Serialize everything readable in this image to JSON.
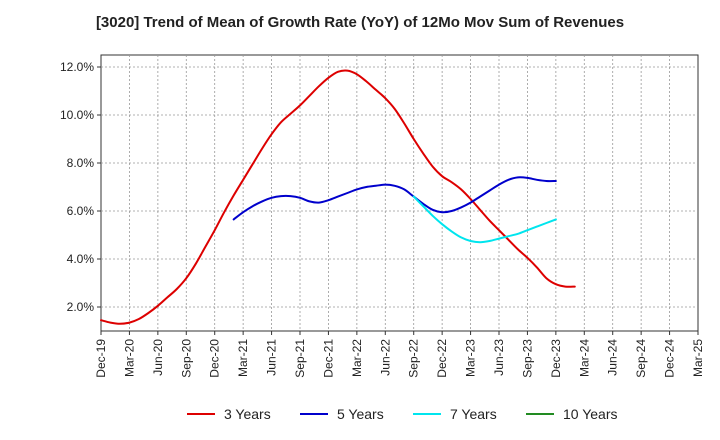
{
  "chart_data": {
    "type": "line",
    "title": "[3020]  Trend of Mean of Growth Rate (YoY) of 12Mo Mov Sum of Revenues",
    "xlabel": "",
    "ylabel": "",
    "categories": [
      "Dec-19",
      "Mar-20",
      "Jun-20",
      "Sep-20",
      "Dec-20",
      "Mar-21",
      "Jun-21",
      "Sep-21",
      "Dec-21",
      "Mar-22",
      "Jun-22",
      "Sep-22",
      "Dec-22",
      "Mar-23",
      "Jun-23",
      "Sep-23",
      "Dec-23",
      "Mar-24",
      "Jun-24",
      "Sep-24",
      "Dec-24",
      "Mar-25"
    ],
    "x_index_range": [
      0,
      63
    ],
    "ylim": [
      1.0,
      12.5
    ],
    "yticks": [
      2.0,
      4.0,
      6.0,
      8.0,
      10.0,
      12.0
    ],
    "ytick_labels": [
      "2.0%",
      "4.0%",
      "6.0%",
      "8.0%",
      "10.0%",
      "12.0%"
    ],
    "grid": true,
    "legend_position": "bottom",
    "series": [
      {
        "name": "3 Years",
        "color": "#dd0000",
        "x": [
          0,
          1,
          2,
          3,
          4,
          5,
          6,
          7,
          8,
          9,
          10,
          11,
          12,
          13,
          14,
          15,
          16,
          17,
          18,
          19,
          20,
          21,
          22,
          23,
          24,
          25,
          26,
          27,
          28,
          29,
          30,
          31,
          32,
          33,
          34,
          35,
          36,
          37,
          38,
          39,
          40,
          41,
          42,
          43,
          44,
          45,
          46,
          47,
          48,
          49,
          50,
          51,
          52,
          53,
          54,
          55,
          56,
          57,
          58,
          59,
          60
        ],
        "values": [
          1.45,
          1.35,
          1.3,
          1.35,
          1.5,
          1.75,
          2.05,
          2.4,
          2.75,
          3.2,
          3.8,
          4.5,
          5.2,
          5.95,
          6.65,
          7.3,
          7.95,
          8.6,
          9.2,
          9.7,
          10.05,
          10.4,
          10.8,
          11.2,
          11.55,
          11.8,
          11.85,
          11.7,
          11.4,
          11.05,
          10.7,
          10.25,
          9.65,
          9.0,
          8.4,
          7.85,
          7.45,
          7.2,
          6.9,
          6.5,
          6.05,
          5.6,
          5.2,
          4.8,
          4.4,
          4.05,
          3.65,
          3.2,
          2.95,
          2.85,
          2.85,
          null,
          null,
          null,
          null,
          null,
          null,
          null,
          null,
          null,
          null
        ]
      },
      {
        "name": "5 Years",
        "color": "#0000cc",
        "x": [
          14,
          15,
          16,
          17,
          18,
          19,
          20,
          21,
          22,
          23,
          24,
          25,
          26,
          27,
          28,
          29,
          30,
          31,
          32,
          33,
          34,
          35,
          36,
          37,
          38,
          39,
          40,
          41,
          42,
          43,
          44,
          45,
          46,
          47,
          48,
          49,
          50
        ],
        "values": [
          5.65,
          5.95,
          6.2,
          6.4,
          6.55,
          6.62,
          6.62,
          6.55,
          6.4,
          6.35,
          6.45,
          6.6,
          6.75,
          6.9,
          7.0,
          7.05,
          7.1,
          7.05,
          6.9,
          6.6,
          6.3,
          6.05,
          5.95,
          6.0,
          6.15,
          6.35,
          6.6,
          6.85,
          7.1,
          7.3,
          7.4,
          7.38,
          7.3,
          7.25,
          7.25,
          null,
          null
        ]
      },
      {
        "name": "7 Years",
        "color": "#00e5ee",
        "x": [
          33,
          34,
          35,
          36,
          37,
          38,
          39,
          40,
          41,
          42,
          43,
          44,
          45,
          46,
          47,
          48,
          49,
          50
        ],
        "values": [
          6.6,
          6.2,
          5.8,
          5.45,
          5.15,
          4.9,
          4.75,
          4.7,
          4.75,
          4.85,
          4.95,
          5.05,
          5.2,
          5.35,
          5.5,
          5.65,
          null,
          null
        ]
      },
      {
        "name": "10 Years",
        "color": "#228b22",
        "x": [],
        "values": []
      }
    ]
  }
}
